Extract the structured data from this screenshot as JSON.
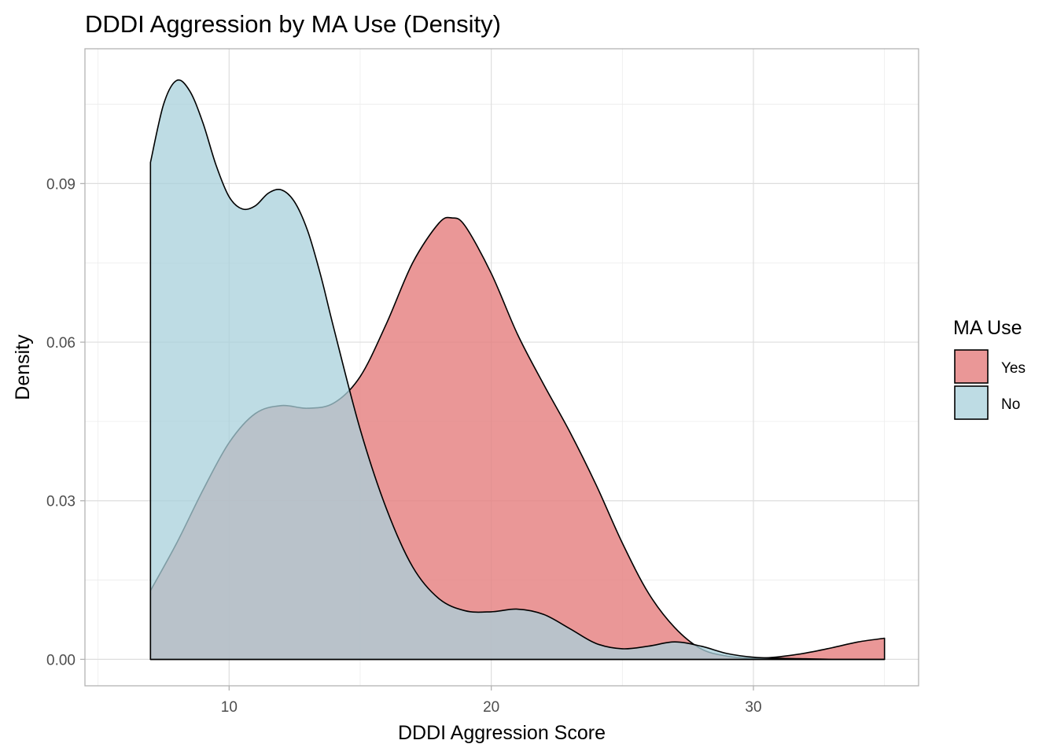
{
  "chart_data": {
    "type": "area",
    "subtype": "density",
    "title": "DDDI Aggression by MA Use (Density)",
    "xlabel": "DDDI Aggression Score",
    "ylabel": "Density",
    "xlim": [
      4.5,
      36.3
    ],
    "ylim": [
      -0.005,
      0.1155
    ],
    "xticks": [
      10,
      20,
      30
    ],
    "yticks": [
      0.0,
      0.03,
      0.06,
      0.09
    ],
    "ytick_labels": [
      "0.00",
      "0.03",
      "0.06",
      "0.09"
    ],
    "xminor": [
      5,
      15,
      25,
      35
    ],
    "yminor": [
      0.015,
      0.045,
      0.075,
      0.105
    ],
    "grid": true,
    "legend": {
      "title": "MA Use",
      "position": "right"
    },
    "series": [
      {
        "name": "Yes",
        "color": "#E58080",
        "opacity": 0.82,
        "x": [
          7,
          8,
          9,
          10,
          11,
          12,
          13,
          14,
          15,
          16,
          17,
          18,
          18.5,
          19,
          20,
          21,
          22,
          23,
          24,
          25,
          26,
          27,
          28,
          29,
          30,
          31,
          32,
          33,
          34,
          35
        ],
        "y": [
          0.013,
          0.022,
          0.032,
          0.041,
          0.0465,
          0.048,
          0.0475,
          0.0485,
          0.0535,
          0.0635,
          0.075,
          0.0825,
          0.0835,
          0.082,
          0.073,
          0.0615,
          0.052,
          0.043,
          0.033,
          0.022,
          0.0125,
          0.006,
          0.002,
          0.0006,
          0.0002,
          0.0005,
          0.0012,
          0.0022,
          0.0033,
          0.004
        ]
      },
      {
        "name": "No",
        "color": "#A8D0DB",
        "opacity": 0.75,
        "x": [
          7,
          7.5,
          8,
          8.5,
          9,
          9.5,
          10,
          10.5,
          11,
          11.5,
          12,
          12.5,
          13,
          13.5,
          14,
          15,
          16,
          17,
          18,
          19,
          20,
          21,
          22,
          23,
          24,
          25,
          26,
          27,
          28,
          29,
          30,
          31,
          32,
          33,
          34,
          35
        ],
        "y": [
          0.094,
          0.105,
          0.1095,
          0.1075,
          0.1015,
          0.0935,
          0.0875,
          0.0852,
          0.0858,
          0.0882,
          0.0888,
          0.0865,
          0.081,
          0.0725,
          0.0625,
          0.0435,
          0.0285,
          0.0175,
          0.0115,
          0.0092,
          0.009,
          0.0095,
          0.0085,
          0.0058,
          0.003,
          0.002,
          0.0025,
          0.0033,
          0.0025,
          0.0011,
          0.0004,
          0.0002,
          0.0001,
          0.0,
          0.0,
          0.0
        ]
      }
    ]
  }
}
